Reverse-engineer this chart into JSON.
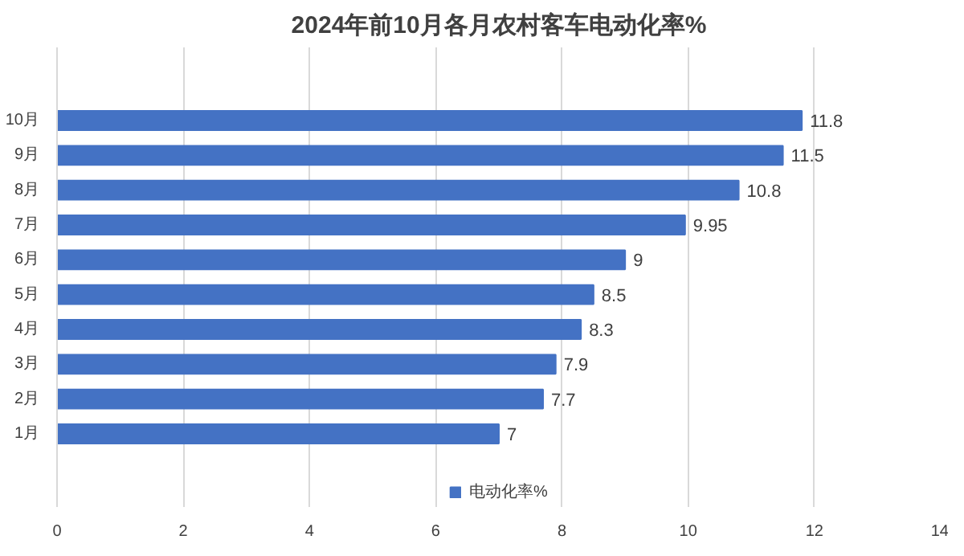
{
  "chart_data": {
    "type": "bar",
    "orientation": "horizontal",
    "title": "2024年前10月各月农村客车电动化率%",
    "categories": [
      "10月",
      "9月",
      "8月",
      "7月",
      "6月",
      "5月",
      "4月",
      "3月",
      "2月",
      "1月"
    ],
    "series": [
      {
        "name": "电动化率%",
        "color": "#4472c4",
        "values": [
          11.8,
          11.5,
          10.8,
          9.95,
          9,
          8.5,
          8.3,
          7.9,
          7.7,
          7
        ]
      }
    ],
    "xlim": [
      0,
      14
    ],
    "xticks": [
      0,
      2,
      4,
      6,
      8,
      10,
      12,
      14
    ],
    "grid": "x",
    "legend": "bottom",
    "data_labels": true
  }
}
